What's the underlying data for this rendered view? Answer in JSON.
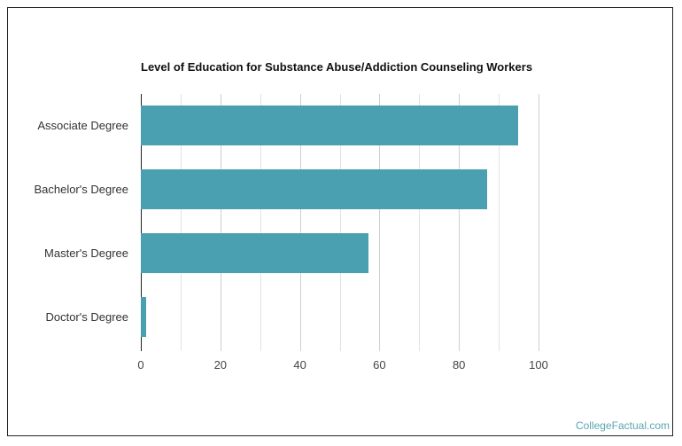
{
  "chart_data": {
    "type": "bar",
    "orientation": "horizontal",
    "title": "Level of Education for Substance Abuse/Addiction Counseling Workers",
    "categories": [
      "Associate Degree",
      "Bachelor's Degree",
      "Master's Degree",
      "Doctor's Degree"
    ],
    "values": [
      94.9,
      87.1,
      57.2,
      1.3
    ],
    "xlabel": "",
    "ylabel": "",
    "xlim": [
      0,
      100
    ],
    "xticks": [
      "0",
      "20",
      "40",
      "60",
      "80",
      "100"
    ],
    "grid": true,
    "bar_color": "#4aa0b0"
  },
  "credit": "CollegeFactual.com"
}
